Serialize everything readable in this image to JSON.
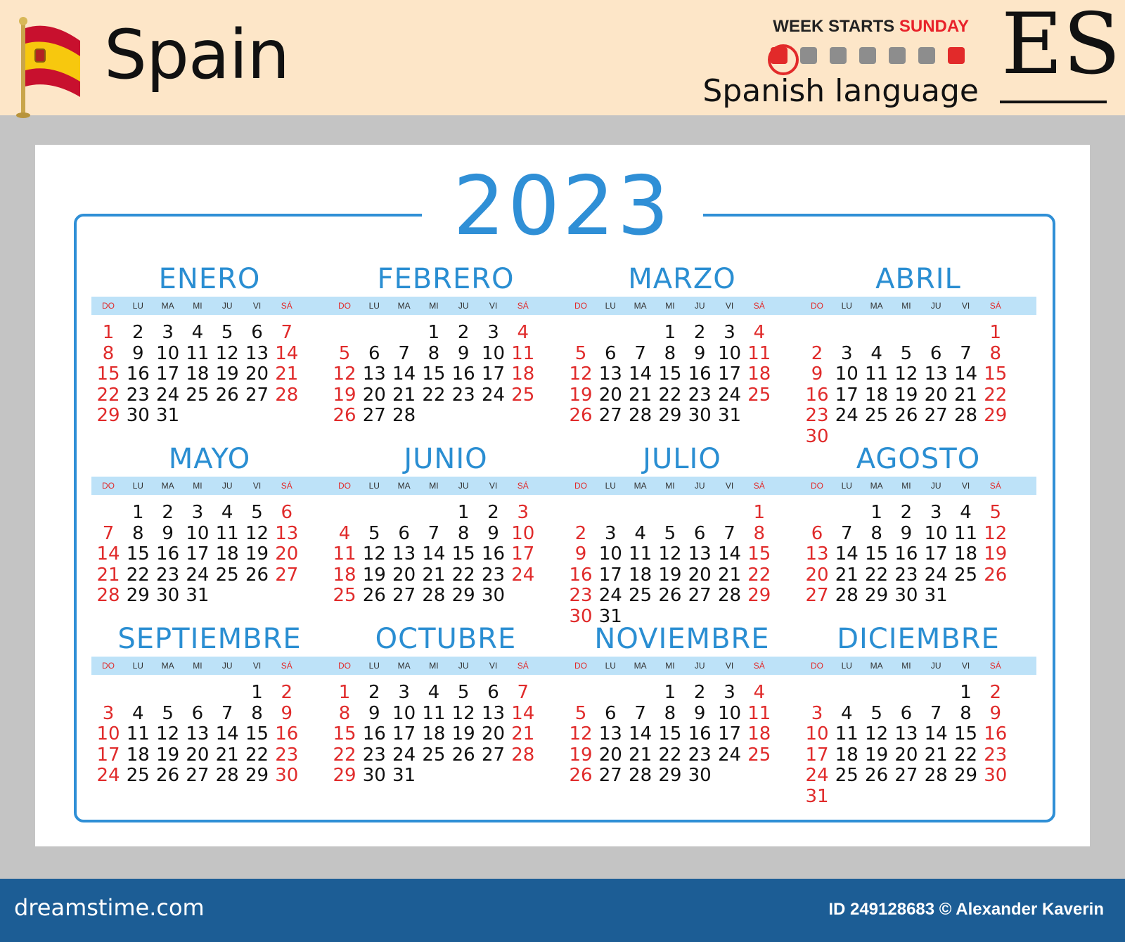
{
  "header": {
    "country": "Spain",
    "week_prefix": "WEEK STARTS ",
    "week_day": "SUNDAY",
    "language": "Spanish language",
    "code": "ES"
  },
  "year": "2023",
  "weekday_labels": [
    "DO",
    "LU",
    "MA",
    "MI",
    "JU",
    "VI",
    "SÁ"
  ],
  "months": [
    {
      "name": "ENERO",
      "first_weekday": 0,
      "days": 31
    },
    {
      "name": "FEBRERO",
      "first_weekday": 3,
      "days": 28
    },
    {
      "name": "MARZO",
      "first_weekday": 3,
      "days": 31
    },
    {
      "name": "ABRIL",
      "first_weekday": 6,
      "days": 30
    },
    {
      "name": "MAYO",
      "first_weekday": 1,
      "days": 31
    },
    {
      "name": "JUNIO",
      "first_weekday": 4,
      "days": 30
    },
    {
      "name": "JULIO",
      "first_weekday": 6,
      "days": 31
    },
    {
      "name": "AGOSTO",
      "first_weekday": 2,
      "days": 31
    },
    {
      "name": "SEPTIEMBRE",
      "first_weekday": 5,
      "days": 30
    },
    {
      "name": "OCTUBRE",
      "first_weekday": 0,
      "days": 31
    },
    {
      "name": "NOVIEMBRE",
      "first_weekday": 3,
      "days": 30
    },
    {
      "name": "DICIEMBRE",
      "first_weekday": 5,
      "days": 31
    }
  ],
  "footer": {
    "brand": "dreamstime.com",
    "credit": "ID 249128683 © Alexander Kaverin"
  },
  "colors": {
    "accent_blue": "#2f8fd6",
    "weekend_red": "#e02b2b",
    "header_bg": "#fde6c8",
    "footer_bg": "#1c5d95"
  },
  "icons": [
    "spain-flag-icon",
    "week-start-indicator-icon"
  ]
}
